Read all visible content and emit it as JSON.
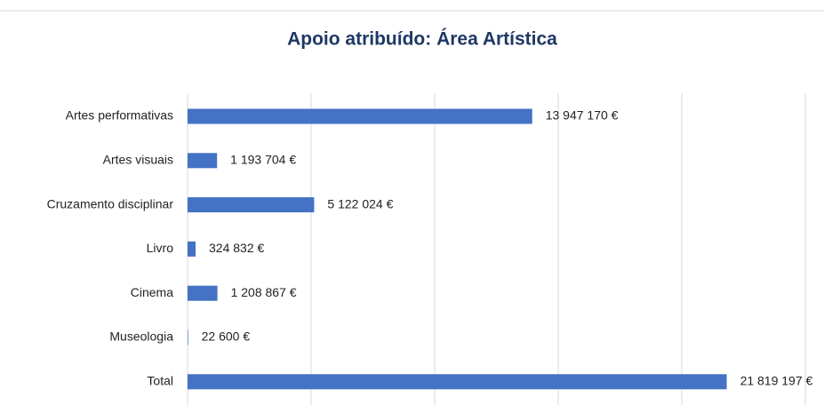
{
  "chart_data": {
    "type": "bar",
    "orientation": "horizontal",
    "title": "Apoio atribuído: Área Artística",
    "categories": [
      "Artes performativas",
      "Artes visuais",
      "Cruzamento disciplinar",
      "Livro",
      "Cinema",
      "Museologia",
      "Total"
    ],
    "values": [
      13947170,
      1193704,
      5122024,
      324832,
      1208867,
      22600,
      21819197
    ],
    "value_labels": [
      "13 947 170 €",
      "1 193 704 €",
      "5 122 024 €",
      "324 832 €",
      "1 208 867 €",
      "22 600 €",
      "21 819 197 €"
    ],
    "color": "#4472c4",
    "xlim": [
      0,
      25000000
    ],
    "xticks": [
      0,
      5000000,
      10000000,
      15000000,
      20000000,
      25000000
    ],
    "grid": true
  }
}
